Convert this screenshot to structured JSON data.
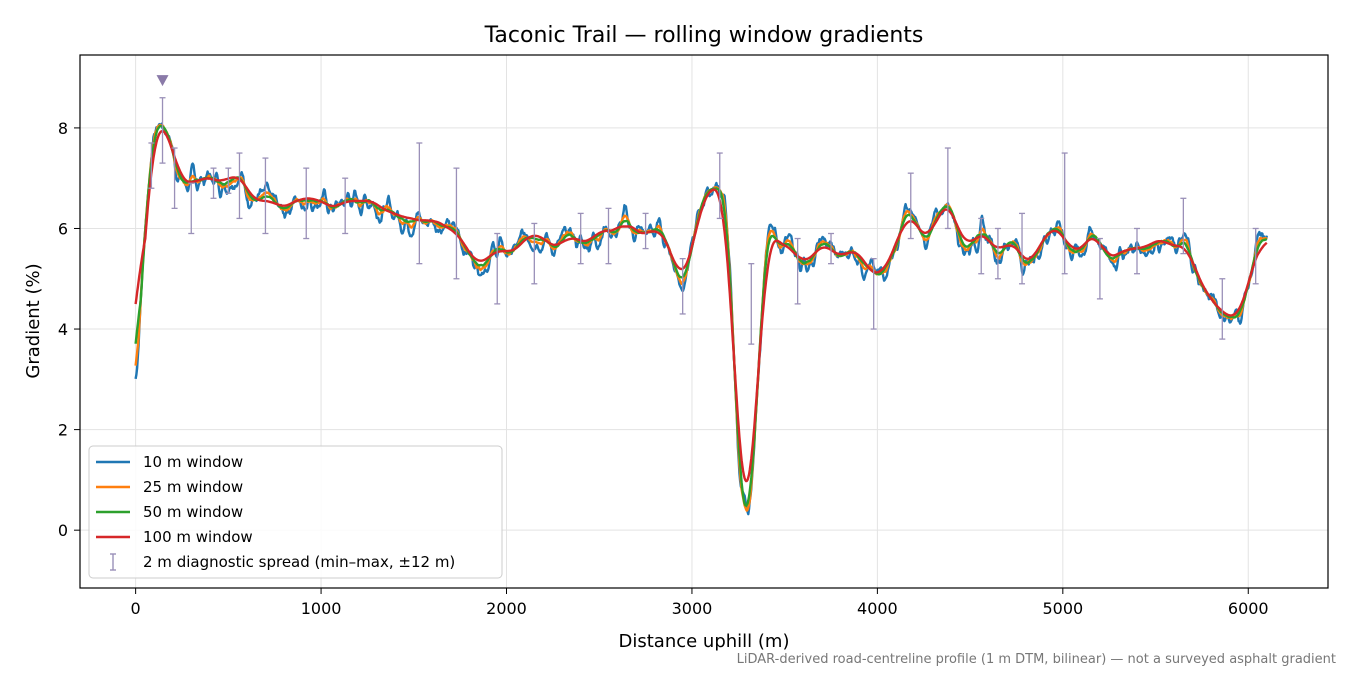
{
  "chart_data": {
    "type": "line",
    "title": "Taconic Trail — rolling window gradients",
    "xlabel": "Distance uphill (m)",
    "ylabel": "Gradient (%)",
    "xlim": [
      -300,
      6430
    ],
    "ylim": [
      -1.15,
      9.45
    ],
    "xticks": [
      0,
      1000,
      2000,
      3000,
      4000,
      5000,
      6000
    ],
    "yticks": [
      0,
      2,
      4,
      6,
      8
    ],
    "grid": true,
    "legend_position": "lower-left",
    "profile": {
      "x": [
        0,
        40,
        90,
        145,
        190,
        240,
        300,
        360,
        420,
        470,
        540,
        600,
        660,
        720,
        780,
        840,
        900,
        960,
        1020,
        1080,
        1150,
        1200,
        1260,
        1320,
        1400,
        1460,
        1520,
        1560,
        1600,
        1680,
        1740,
        1800,
        1850,
        1900,
        1960,
        2020,
        2080,
        2140,
        2200,
        2280,
        2340,
        2400,
        2460,
        2540,
        2600,
        2640,
        2700,
        2760,
        2820,
        2880,
        2940,
        2990,
        3060,
        3130,
        3180,
        3220,
        3260,
        3300,
        3340,
        3400,
        3460,
        3540,
        3600,
        3660,
        3720,
        3800,
        3860,
        3940,
        4000,
        4060,
        4100,
        4160,
        4220,
        4280,
        4330,
        4380,
        4420,
        4480,
        4540,
        4600,
        4660,
        4720,
        4780,
        4820,
        4880,
        4940,
        5000,
        5060,
        5120,
        5180,
        5240,
        5300,
        5360,
        5420,
        5480,
        5540,
        5600,
        5660,
        5720,
        5780,
        5840,
        5880,
        5930,
        5980,
        6050,
        6100
      ],
      "y": [
        2.8,
        5.4,
        7.6,
        8.1,
        7.7,
        7.0,
        6.9,
        7.0,
        7.0,
        6.9,
        7.1,
        6.8,
        6.5,
        6.6,
        6.4,
        6.5,
        6.6,
        6.6,
        6.5,
        6.4,
        6.6,
        6.5,
        6.6,
        6.4,
        6.3,
        6.2,
        6.2,
        6.1,
        6.2,
        6.0,
        5.9,
        5.5,
        5.3,
        5.4,
        5.6,
        5.5,
        5.7,
        5.9,
        5.8,
        5.6,
        5.9,
        5.7,
        5.8,
        6.0,
        5.9,
        6.2,
        5.9,
        5.9,
        6.0,
        5.6,
        5.0,
        5.4,
        6.6,
        6.8,
        6.4,
        4.0,
        1.0,
        0.2,
        2.0,
        5.6,
        5.7,
        5.6,
        5.3,
        5.5,
        5.7,
        5.4,
        5.6,
        5.3,
        5.0,
        5.4,
        5.6,
        6.3,
        6.0,
        5.8,
        6.3,
        6.5,
        6.2,
        5.6,
        5.9,
        5.8,
        5.5,
        5.8,
        5.4,
        5.3,
        5.7,
        6.0,
        5.9,
        5.5,
        5.7,
        5.9,
        5.4,
        5.5,
        5.6,
        5.6,
        5.7,
        5.8,
        5.6,
        5.7,
        5.1,
        4.7,
        4.4,
        4.3,
        4.2,
        4.6,
        5.6,
        5.8
      ]
    },
    "series": [
      {
        "name": "10 m window",
        "color": "#1f77b4"
      },
      {
        "name": "25 m window",
        "color": "#ff7f0e"
      },
      {
        "name": "50 m window",
        "color": "#2ca02c"
      },
      {
        "name": "100 m window",
        "color": "#d62728"
      }
    ],
    "errorbars": {
      "name": "2 m diagnostic spread (min–max, ±12 m)",
      "color": "#9a90b8",
      "x": [
        85,
        145,
        210,
        300,
        420,
        500,
        560,
        700,
        920,
        1130,
        1530,
        1730,
        1950,
        2150,
        2400,
        2550,
        2750,
        2950,
        3150,
        3320,
        3570,
        3750,
        3980,
        4180,
        4380,
        4560,
        4650,
        4780,
        5010,
        5200,
        5400,
        5650,
        5860,
        6040
      ],
      "low": [
        6.8,
        7.3,
        6.4,
        5.9,
        6.6,
        6.7,
        6.2,
        5.9,
        5.8,
        5.9,
        5.3,
        5.0,
        4.5,
        4.9,
        5.3,
        5.3,
        5.6,
        4.3,
        6.2,
        3.7,
        4.5,
        5.3,
        4.0,
        5.8,
        6.0,
        5.1,
        5.0,
        4.9,
        5.1,
        4.6,
        5.1,
        5.5,
        3.8,
        4.9
      ],
      "high": [
        7.7,
        8.6,
        7.6,
        6.9,
        7.2,
        7.2,
        7.5,
        7.4,
        7.2,
        7.0,
        7.7,
        7.2,
        5.9,
        6.1,
        6.3,
        6.4,
        6.3,
        5.4,
        7.5,
        5.3,
        5.8,
        5.9,
        5.4,
        7.1,
        7.6,
        6.2,
        6.0,
        6.3,
        7.5,
        5.8,
        6.0,
        6.6,
        5.0,
        6.0
      ]
    },
    "marker": {
      "x": 145,
      "y": 8.95,
      "color": "#8a7aa8"
    }
  },
  "note": "LiDAR-derived road-centreline profile (1 m DTM, bilinear) — not a surveyed asphalt gradient"
}
